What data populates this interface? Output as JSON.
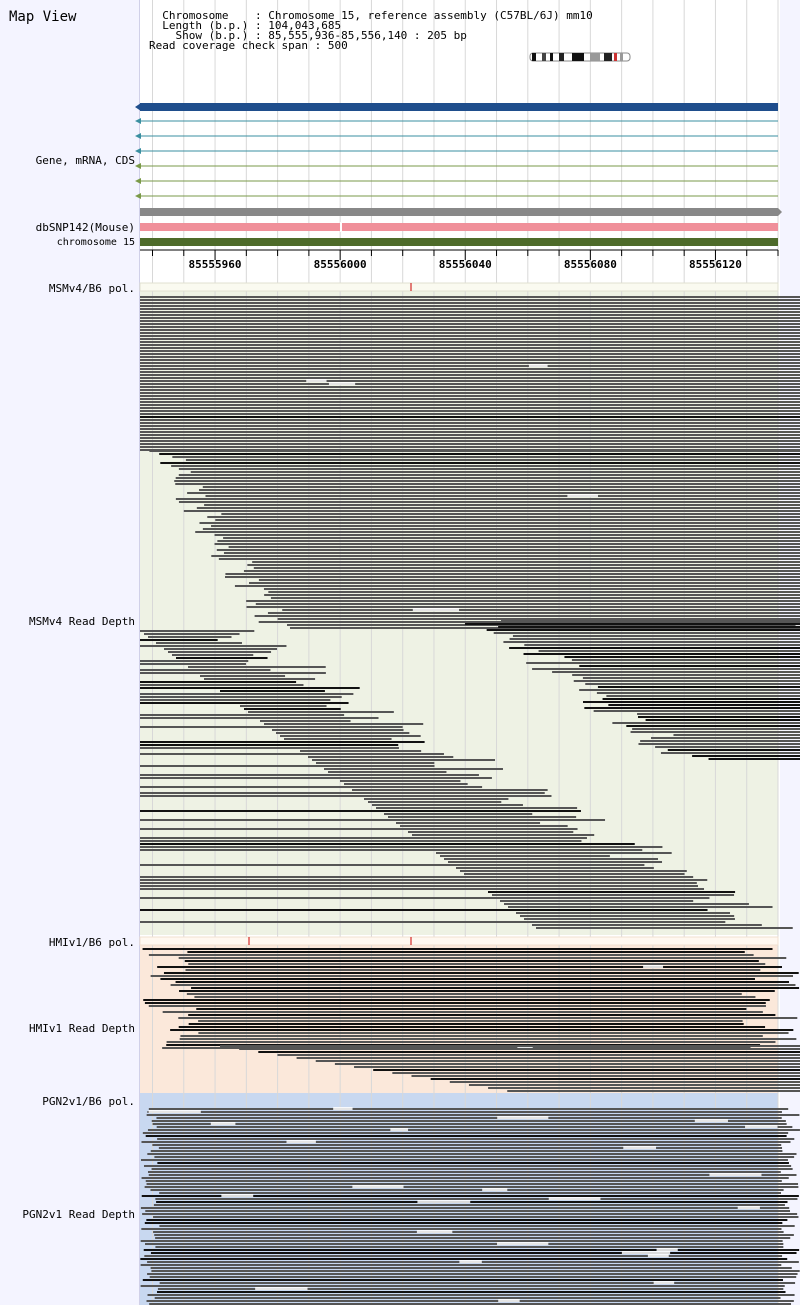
{
  "panel_title": "Map View",
  "info": {
    "chromosome_label": "Chromosome",
    "chromosome_value": "Chromosome 15, reference assembly (C57BL/6J) mm10",
    "length_label": "Length (b.p.)",
    "length_value": "104,043,685",
    "show_label": "Show (b.p.)",
    "show_value": "85,555,936-85,556,140 : 205 bp",
    "coverage_label": "Read coverage check span",
    "coverage_value": "500"
  },
  "tracks": {
    "gene": "Gene, mRNA, CDS",
    "dbsnp": "dbSNP142(Mouse)",
    "chromosome": "chromosome 15",
    "msm_pol": "MSMv4/B6 pol.",
    "msm_depth": "MSMv4 Read Depth",
    "hmi_pol": "HMIv1/B6 pol.",
    "hmi_depth": "HMIv1 Read Depth",
    "pgn_pol": "PGN2v1/B6 pol.",
    "pgn_depth": "PGN2v1 Read Depth"
  },
  "ruler": {
    "start": 85555936,
    "end": 85556140,
    "labels": [
      "85555960",
      "85556000",
      "85556040",
      "85556080",
      "85556120"
    ]
  },
  "colors": {
    "gene_main": "#1f4e8c",
    "transcript": "#3a8fa0",
    "cds": "#7a9a48",
    "grey_bar": "#888888",
    "snp": "#f0909a",
    "chromosome_bar": "#4e6b2a",
    "msm_bg": "#eef2e4",
    "hmi_bg": "#fbe8da",
    "pgn_bg": "#c8d8f0",
    "read": "#555555",
    "read_dark": "#111111"
  }
}
